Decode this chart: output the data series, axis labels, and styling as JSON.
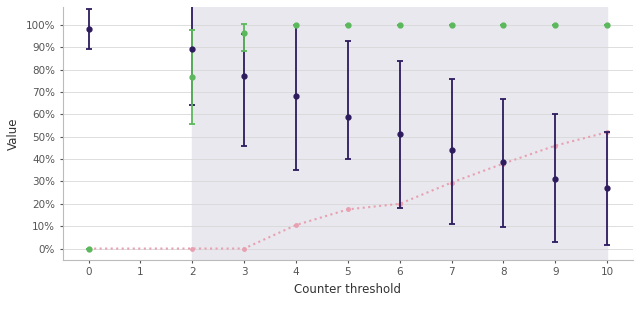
{
  "title": "",
  "xlabel": "Counter threshold",
  "ylabel": "Value",
  "shaded_region": [
    2,
    10
  ],
  "hba_x": [
    0,
    2,
    3,
    4,
    5,
    6,
    7,
    8,
    9,
    10
  ],
  "hba_y": [
    0.98,
    0.89,
    0.77,
    0.68,
    0.59,
    0.51,
    0.44,
    0.385,
    0.31,
    0.27
  ],
  "hba_ymin": [
    0.89,
    0.64,
    0.46,
    0.35,
    0.4,
    0.18,
    0.11,
    0.095,
    0.03,
    0.015
  ],
  "hba_ymax": [
    1.07,
    1.1,
    0.96,
    1.0,
    0.93,
    0.84,
    0.76,
    0.67,
    0.6,
    0.52
  ],
  "hba_color": "#2d1b5e",
  "rel_x": [
    0,
    2,
    3,
    4,
    5,
    6,
    7,
    8,
    9,
    10
  ],
  "rel_y": [
    0.0,
    0.765,
    0.965,
    1.0,
    1.0,
    1.0,
    1.0,
    1.0,
    1.0,
    1.0
  ],
  "rel_ymin": [
    0.0,
    0.555,
    0.885,
    1.0,
    1.0,
    1.0,
    1.0,
    1.0,
    1.0,
    1.0
  ],
  "rel_ymax": [
    0.0,
    0.975,
    1.005,
    1.0,
    1.0,
    1.0,
    1.0,
    1.0,
    1.0,
    1.0
  ],
  "rel_color": "#5cb85c",
  "invalid_x": [
    0,
    2,
    3,
    4,
    5,
    6,
    7,
    8,
    9,
    10
  ],
  "invalid_y": [
    0.0,
    0.0,
    0.0,
    0.105,
    0.175,
    0.2,
    0.295,
    0.38,
    0.46,
    0.52
  ],
  "invalid_color": "#e8a0b0",
  "shaded_color": "#e8e8ee",
  "grid_color": "#d8d8d8",
  "ylim": [
    -0.05,
    1.08
  ],
  "xlim": [
    -0.5,
    10.5
  ],
  "yticks": [
    0.0,
    0.1,
    0.2,
    0.3,
    0.4,
    0.5,
    0.6,
    0.7,
    0.8,
    0.9,
    1.0
  ],
  "ytick_labels": [
    "0%",
    "10%",
    "20%",
    "30%",
    "40%",
    "50%",
    "60%",
    "70%",
    "80%",
    "90%",
    "100%"
  ],
  "xticks": [
    0,
    1,
    2,
    3,
    4,
    5,
    6,
    7,
    8,
    9,
    10
  ]
}
